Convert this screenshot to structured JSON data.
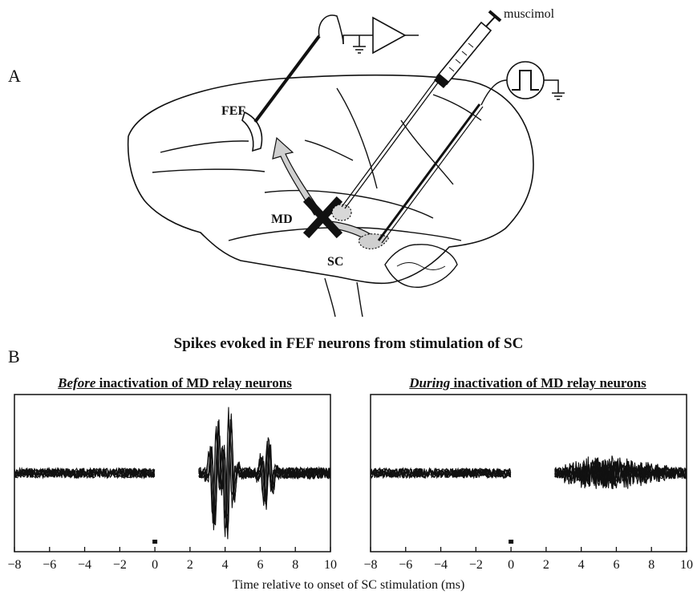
{
  "panel_a": {
    "letter": "A",
    "labels": {
      "syringe": "muscimol",
      "frontal_area": "FEF",
      "thalamus": "MD",
      "colliculus": "SC"
    }
  },
  "panel_b": {
    "letter": "B",
    "title": "Spikes evoked in FEF neurons from stimulation of SC",
    "xlabel": "Time relative to onset of SC stimulation (ms)",
    "left": {
      "title_em": "Before",
      "title_rest": " inactivation of MD relay neurons"
    },
    "right": {
      "title_em": "During",
      "title_rest": " inactivation of MD relay neurons"
    }
  },
  "chart_data": [
    {
      "type": "line",
      "title": "Before inactivation of MD relay neurons",
      "xlabel": "Time relative to onset of SC stimulation (ms)",
      "xlim": [
        -8,
        10
      ],
      "xticks": [
        -8,
        -6,
        -4,
        -2,
        0,
        2,
        4,
        6,
        8,
        10
      ],
      "stimulus_marker_x": 0,
      "description_values": {
        "baseline_window": [
          -8,
          0
        ],
        "response_window": [
          2.5,
          10
        ],
        "large_spikes_near_ms": [
          3.5,
          4.2,
          6.4
        ]
      }
    },
    {
      "type": "line",
      "title": "During inactivation of MD relay neurons",
      "xlabel": "Time relative to onset of SC stimulation (ms)",
      "xlim": [
        -8,
        10
      ],
      "xticks": [
        -8,
        -6,
        -4,
        -2,
        0,
        2,
        4,
        6,
        8,
        10
      ],
      "stimulus_marker_x": 0,
      "description_values": {
        "baseline_window": [
          -8,
          0
        ],
        "response_window": [
          2.5,
          10
        ]
      }
    }
  ]
}
